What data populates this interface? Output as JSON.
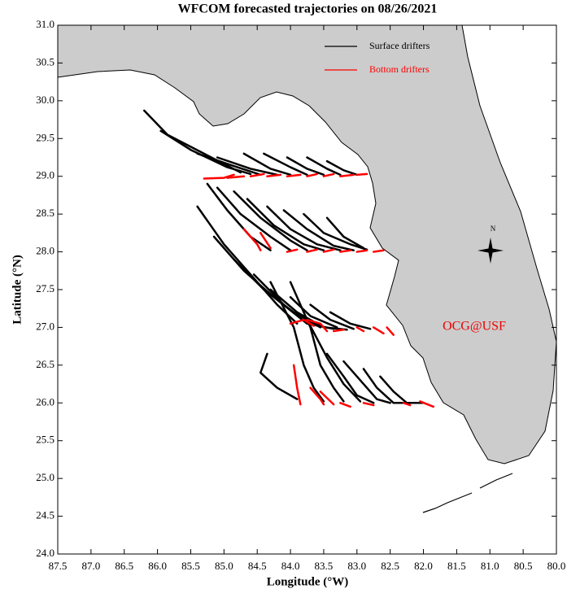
{
  "chart_data": {
    "type": "trajectory",
    "title": "WFCOM forecasted trajectories on 08/26/2021",
    "x_label": "Longitude (°W)",
    "y_label": "Latitude (°N)",
    "xlim": [
      87.5,
      80.0
    ],
    "ylim": [
      24.0,
      31.0
    ],
    "xticks": [
      87.5,
      {
        "value": 87,
        "label": "87.0"
      },
      86.5,
      {
        "value": 86,
        "label": "86.0"
      },
      85.5,
      {
        "value": 85,
        "label": "85.0"
      },
      84.5,
      {
        "value": 84,
        "label": "84.0"
      },
      83.5,
      {
        "value": 83,
        "label": "83.0"
      },
      82.5,
      {
        "value": 82,
        "label": "82.0"
      },
      81.5,
      {
        "value": 81,
        "label": "81.0"
      },
      80.5,
      {
        "value": 80,
        "label": "80.0"
      }
    ],
    "yticks": [
      {
        "value": 24,
        "label": "24.0"
      },
      24.5,
      {
        "value": 25,
        "label": "25.0"
      },
      25.5,
      {
        "value": 26,
        "label": "26.0"
      },
      26.5,
      {
        "value": 27,
        "label": "27.0"
      },
      27.5,
      {
        "value": 28,
        "label": "28.0"
      },
      28.5,
      {
        "value": 29,
        "label": "29.0"
      },
      29.5,
      {
        "value": 30,
        "label": "30.0"
      },
      30.5,
      {
        "value": 31,
        "label": "31.0"
      }
    ],
    "legend_loc": "upper right",
    "annotation": "OCG@USF",
    "annotation_color": "#ee0000",
    "compass_label": "N",
    "series": [
      {
        "name": "Surface drifters",
        "color": "#000000",
        "tracks": [
          {
            "x": [
              86.2,
              85.85,
              85.3,
              84.75
            ],
            "y": [
              29.87,
              29.55,
              29.3,
              29.05
            ]
          },
          {
            "x": [
              85.95,
              85.5,
              84.95,
              84.6
            ],
            "y": [
              29.6,
              29.35,
              29.12,
              29.03
            ]
          },
          {
            "x": [
              85.4,
              84.9,
              84.45
            ],
            "y": [
              29.3,
              29.15,
              29.02
            ]
          },
          {
            "x": [
              85.1,
              84.6,
              84.2
            ],
            "y": [
              29.25,
              29.1,
              29.02
            ]
          },
          {
            "x": [
              84.7,
              84.3,
              84.0
            ],
            "y": [
              29.3,
              29.1,
              29.02
            ]
          },
          {
            "x": [
              84.4,
              84.0,
              83.75
            ],
            "y": [
              29.3,
              29.12,
              29.02
            ]
          },
          {
            "x": [
              84.05,
              83.75,
              83.5
            ],
            "y": [
              29.25,
              29.1,
              29.02
            ]
          },
          {
            "x": [
              83.75,
              83.45,
              83.25
            ],
            "y": [
              29.25,
              29.1,
              29.02
            ]
          },
          {
            "x": [
              83.45,
              83.2,
              83.0
            ],
            "y": [
              29.2,
              29.08,
              29.02
            ]
          },
          {
            "x": [
              85.25,
              84.95,
              84.6,
              84.3
            ],
            "y": [
              28.9,
              28.55,
              28.2,
              28.02
            ]
          },
          {
            "x": [
              85.1,
              84.75,
              84.3,
              84.0
            ],
            "y": [
              28.85,
              28.5,
              28.2,
              28.02
            ]
          },
          {
            "x": [
              84.85,
              84.45,
              84.0,
              83.75
            ],
            "y": [
              28.8,
              28.45,
              28.15,
              28.02
            ]
          },
          {
            "x": [
              84.65,
              84.25,
              83.8,
              83.5
            ],
            "y": [
              28.7,
              28.35,
              28.1,
              28.02
            ]
          },
          {
            "x": [
              84.35,
              84.0,
              83.6,
              83.25
            ],
            "y": [
              28.6,
              28.3,
              28.1,
              28.02
            ]
          },
          {
            "x": [
              84.1,
              83.75,
              83.35,
              83.05
            ],
            "y": [
              28.55,
              28.3,
              28.08,
              28.02
            ]
          },
          {
            "x": [
              83.8,
              83.5,
              83.1,
              82.85
            ],
            "y": [
              28.5,
              28.25,
              28.1,
              28.03
            ]
          },
          {
            "x": [
              83.45,
              83.2,
              82.9
            ],
            "y": [
              28.45,
              28.2,
              28.05
            ]
          },
          {
            "x": [
              85.4,
              85.0,
              84.5,
              84.2,
              83.9
            ],
            "y": [
              28.6,
              28.1,
              27.6,
              27.3,
              27.05
            ]
          },
          {
            "x": [
              85.15,
              84.7,
              84.25,
              83.75
            ],
            "y": [
              28.2,
              27.75,
              27.4,
              27.05
            ]
          },
          {
            "x": [
              84.85,
              84.4,
              83.95,
              83.55
            ],
            "y": [
              27.9,
              27.5,
              27.2,
              27.0
            ]
          },
          {
            "x": [
              84.55,
              84.1,
              83.75,
              83.35
            ],
            "y": [
              27.7,
              27.3,
              27.05,
              26.98
            ]
          },
          {
            "x": [
              84.3,
              83.9,
              83.5,
              83.15
            ],
            "y": [
              27.5,
              27.2,
              27.0,
              26.97
            ]
          },
          {
            "x": [
              84.0,
              83.7,
              83.3
            ],
            "y": [
              27.4,
              27.15,
              27.0
            ]
          },
          {
            "x": [
              83.7,
              83.4,
              83.05
            ],
            "y": [
              27.3,
              27.1,
              26.98
            ]
          },
          {
            "x": [
              83.4,
              83.1,
              82.8
            ],
            "y": [
              27.2,
              27.05,
              26.98
            ]
          },
          {
            "x": [
              84.35,
              84.45,
              84.2,
              83.9
            ],
            "y": [
              26.65,
              26.4,
              26.2,
              26.05
            ]
          },
          {
            "x": [
              84.3,
              83.95,
              83.8,
              83.65,
              83.5
            ],
            "y": [
              27.6,
              27.0,
              26.5,
              26.2,
              26.02
            ]
          },
          {
            "x": [
              84.0,
              83.7,
              83.55,
              83.35,
              83.2
            ],
            "y": [
              27.6,
              27.0,
              26.5,
              26.2,
              26.02
            ]
          },
          {
            "x": [
              83.75,
              83.45,
              83.2,
              82.95
            ],
            "y": [
              27.1,
              26.6,
              26.25,
              26.02
            ]
          },
          {
            "x": [
              83.45,
              83.2,
              83.0,
              82.75
            ],
            "y": [
              26.65,
              26.35,
              26.1,
              26.0
            ]
          },
          {
            "x": [
              83.2,
              82.95,
              82.7,
              82.5
            ],
            "y": [
              26.55,
              26.3,
              26.05,
              26.0
            ]
          },
          {
            "x": [
              82.9,
              82.7,
              82.45,
              82.2
            ],
            "y": [
              26.45,
              26.2,
              26.0,
              26.0
            ]
          },
          {
            "x": [
              82.65,
              82.45,
              82.25,
              82.0
            ],
            "y": [
              26.35,
              26.15,
              26.0,
              26.0
            ]
          }
        ]
      },
      {
        "name": "Bottom drifters",
        "color": "#ff0000",
        "tracks": [
          {
            "x": [
              85.3,
              85.0,
              84.85
            ],
            "y": [
              28.97,
              28.98,
              29.02
            ]
          },
          {
            "x": [
              84.95,
              84.7
            ],
            "y": [
              28.98,
              29.0
            ]
          },
          {
            "x": [
              84.6,
              84.4
            ],
            "y": [
              29.0,
              29.03
            ]
          },
          {
            "x": [
              84.35,
              84.15
            ],
            "y": [
              29.0,
              29.02
            ]
          },
          {
            "x": [
              84.05,
              83.85
            ],
            "y": [
              29.0,
              29.02
            ]
          },
          {
            "x": [
              83.75,
              83.6
            ],
            "y": [
              29.0,
              29.03
            ]
          },
          {
            "x": [
              83.5,
              83.35
            ],
            "y": [
              29.0,
              29.03
            ]
          },
          {
            "x": [
              83.25,
              83.05
            ],
            "y": [
              29.0,
              29.02
            ]
          },
          {
            "x": [
              83.0,
              82.85
            ],
            "y": [
              29.02,
              29.03
            ]
          },
          {
            "x": [
              84.7,
              84.5,
              84.45
            ],
            "y": [
              28.3,
              28.1,
              28.02
            ]
          },
          {
            "x": [
              84.45,
              84.3
            ],
            "y": [
              28.25,
              28.05
            ]
          },
          {
            "x": [
              84.05,
              83.9
            ],
            "y": [
              28.0,
              28.03
            ]
          },
          {
            "x": [
              83.75,
              83.6
            ],
            "y": [
              28.0,
              28.03
            ]
          },
          {
            "x": [
              83.5,
              83.35
            ],
            "y": [
              28.0,
              28.03
            ]
          },
          {
            "x": [
              83.25,
              83.1
            ],
            "y": [
              28.0,
              28.02
            ]
          },
          {
            "x": [
              83.0,
              82.85
            ],
            "y": [
              28.0,
              28.02
            ]
          },
          {
            "x": [
              82.75,
              82.6
            ],
            "y": [
              28.0,
              28.02
            ]
          },
          {
            "x": [
              84.0,
              83.8,
              83.65
            ],
            "y": [
              27.05,
              27.1,
              27.02
            ]
          },
          {
            "x": [
              83.75,
              83.55,
              83.45
            ],
            "y": [
              27.1,
              27.05,
              26.95
            ]
          },
          {
            "x": [
              83.35,
              83.2
            ],
            "y": [
              26.95,
              26.97
            ]
          },
          {
            "x": [
              83.0,
              82.9
            ],
            "y": [
              27.0,
              26.95
            ]
          },
          {
            "x": [
              82.75,
              82.6
            ],
            "y": [
              27.0,
              26.92
            ]
          },
          {
            "x": [
              82.55,
              82.45
            ],
            "y": [
              27.0,
              26.9
            ]
          },
          {
            "x": [
              83.95,
              83.9,
              83.85
            ],
            "y": [
              26.5,
              26.2,
              25.98
            ]
          },
          {
            "x": [
              83.7,
              83.55,
              83.5
            ],
            "y": [
              26.2,
              26.05,
              25.98
            ]
          },
          {
            "x": [
              83.55,
              83.35
            ],
            "y": [
              26.15,
              25.98
            ]
          },
          {
            "x": [
              83.25,
              83.1
            ],
            "y": [
              26.0,
              25.95
            ]
          },
          {
            "x": [
              82.9,
              82.75
            ],
            "y": [
              26.0,
              25.97
            ]
          },
          {
            "x": [
              82.3,
              82.2
            ],
            "y": [
              26.0,
              25.97
            ]
          },
          {
            "x": [
              82.05,
              81.85
            ],
            "y": [
              26.02,
              25.95
            ]
          }
        ]
      }
    ]
  }
}
